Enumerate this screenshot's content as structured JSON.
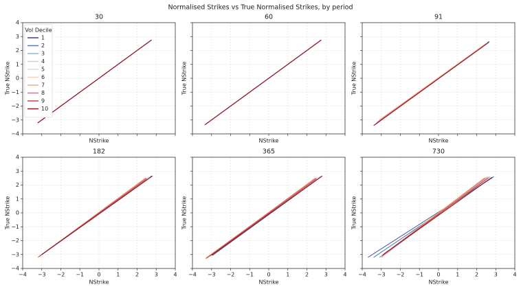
{
  "title": "Normalised Strikes vs True Normalised Strikes, by period",
  "chart_data": [
    {
      "type": "line",
      "title": "30",
      "xlabel": "NStrike",
      "ylabel": "True NStrike",
      "xlim": [
        -4,
        4
      ],
      "ylim": [
        -4,
        4
      ],
      "xticks": [
        {
          "value": -4,
          "label": "−4"
        },
        {
          "value": -3,
          "label": "−3"
        },
        {
          "value": -2,
          "label": "−2"
        },
        {
          "value": -1,
          "label": "−1"
        },
        0,
        1,
        2,
        3,
        4
      ],
      "yticks": [
        {
          "value": -4,
          "label": "−4"
        },
        {
          "value": -3,
          "label": "−3"
        },
        {
          "value": -2,
          "label": "−2"
        },
        {
          "value": -1,
          "label": "−1"
        },
        0,
        1,
        2,
        3,
        4
      ],
      "grid": true,
      "legend": "upper left",
      "legend_title": "Vol Decile",
      "series": [
        {
          "name": "1",
          "color": "#2b4a7a",
          "x": [
            -3.15,
            2.72
          ],
          "values": [
            -3.15,
            2.72
          ]
        },
        {
          "name": "2",
          "color": "#4d7fb3",
          "x": [
            -3.15,
            2.72
          ],
          "values": [
            -3.15,
            2.72
          ]
        },
        {
          "name": "3",
          "color": "#93b7d6",
          "x": [
            -3.17,
            2.73
          ],
          "values": [
            -3.17,
            2.73
          ]
        },
        {
          "name": "4",
          "color": "#c7d3e3",
          "x": [
            -3.18,
            2.73
          ],
          "values": [
            -3.18,
            2.73
          ]
        },
        {
          "name": "5",
          "color": "#dcdcdc",
          "x": [
            -3.18,
            2.74
          ],
          "values": [
            -3.18,
            2.74
          ]
        },
        {
          "name": "6",
          "color": "#f6cfc0",
          "x": [
            -3.2,
            2.74
          ],
          "values": [
            -3.2,
            2.74
          ]
        },
        {
          "name": "7",
          "color": "#f4a98c",
          "x": [
            -3.2,
            2.75
          ],
          "values": [
            -3.2,
            2.75
          ]
        },
        {
          "name": "8",
          "color": "#e47a62",
          "x": [
            -3.2,
            2.75
          ],
          "values": [
            -3.2,
            2.75
          ]
        },
        {
          "name": "9",
          "color": "#c84543",
          "x": [
            -3.22,
            2.76
          ],
          "values": [
            -3.22,
            2.76
          ]
        },
        {
          "name": "10",
          "color": "#8a1c2c",
          "x": [
            -3.2,
            2.76
          ],
          "values": [
            -3.2,
            2.76
          ]
        }
      ]
    },
    {
      "type": "line",
      "title": "60",
      "xlabel": "NStrike",
      "ylabel": "True NStrike",
      "xlim": [
        -4,
        4
      ],
      "ylim": [
        -4,
        4
      ],
      "xticks": [
        {
          "value": -4,
          "label": "−4"
        },
        {
          "value": -3,
          "label": "−3"
        },
        {
          "value": -2,
          "label": "−2"
        },
        {
          "value": -1,
          "label": "−1"
        },
        0,
        1,
        2,
        3,
        4
      ],
      "yticks": [
        {
          "value": -4,
          "label": "−4"
        },
        {
          "value": -3,
          "label": "−3"
        },
        {
          "value": -2,
          "label": "−2"
        },
        {
          "value": -1,
          "label": "−1"
        },
        0,
        1,
        2,
        3,
        4
      ],
      "grid": true,
      "series": [
        {
          "color": "#2b4a7a",
          "x": [
            -3.3,
            2.72
          ],
          "values": [
            -3.3,
            2.72
          ]
        },
        {
          "color": "#4d7fb3",
          "x": [
            -3.3,
            2.72
          ],
          "values": [
            -3.3,
            2.72
          ]
        },
        {
          "color": "#93b7d6",
          "x": [
            -3.32,
            2.73
          ],
          "values": [
            -3.32,
            2.73
          ]
        },
        {
          "color": "#c7d3e3",
          "x": [
            -3.32,
            2.73
          ],
          "values": [
            -3.32,
            2.73
          ]
        },
        {
          "color": "#dcdcdc",
          "x": [
            -3.33,
            2.74
          ],
          "values": [
            -3.33,
            2.74
          ]
        },
        {
          "color": "#f6cfc0",
          "x": [
            -3.33,
            2.74
          ],
          "values": [
            -3.33,
            2.74
          ]
        },
        {
          "color": "#f4a98c",
          "x": [
            -3.35,
            2.75
          ],
          "values": [
            -3.35,
            2.75
          ]
        },
        {
          "color": "#e47a62",
          "x": [
            -3.3,
            2.75
          ],
          "values": [
            -3.3,
            2.75
          ]
        },
        {
          "color": "#c84543",
          "x": [
            -3.35,
            2.76
          ],
          "values": [
            -3.35,
            2.76
          ]
        },
        {
          "color": "#8a1c2c",
          "x": [
            -3.35,
            2.75
          ],
          "values": [
            -3.35,
            2.75
          ]
        }
      ]
    },
    {
      "type": "line",
      "title": "91",
      "xlabel": "NStrike",
      "ylabel": "True NStrike",
      "xlim": [
        -4,
        4
      ],
      "ylim": [
        -4,
        4
      ],
      "xticks": [
        {
          "value": -4,
          "label": "−4"
        },
        {
          "value": -3,
          "label": "−3"
        },
        {
          "value": -2,
          "label": "−2"
        },
        {
          "value": -1,
          "label": "−1"
        },
        0,
        1,
        2,
        3,
        4
      ],
      "yticks": [
        {
          "value": -4,
          "label": "−4"
        },
        {
          "value": -3,
          "label": "−3"
        },
        {
          "value": -2,
          "label": "−2"
        },
        {
          "value": -1,
          "label": "−1"
        },
        0,
        1,
        2,
        3,
        4
      ],
      "grid": true,
      "series": [
        {
          "color": "#2b4a7a",
          "x": [
            -3.35,
            2.65
          ],
          "values": [
            -3.35,
            2.65
          ]
        },
        {
          "color": "#4d7fb3",
          "x": [
            -3.3,
            2.62
          ],
          "values": [
            -3.3,
            2.62
          ]
        },
        {
          "color": "#93b7d6",
          "x": [
            -3.25,
            2.6
          ],
          "values": [
            -3.2,
            2.6
          ]
        },
        {
          "color": "#c7d3e3",
          "x": [
            -3.2,
            2.55
          ],
          "values": [
            -3.15,
            2.55
          ]
        },
        {
          "color": "#dcdcdc",
          "x": [
            -3.15,
            2.55
          ],
          "values": [
            -3.1,
            2.55
          ]
        },
        {
          "color": "#f6cfc0",
          "x": [
            -3.1,
            2.5
          ],
          "values": [
            -3.05,
            2.5
          ]
        },
        {
          "color": "#f4a98c",
          "x": [
            -3.1,
            2.5
          ],
          "values": [
            -3.0,
            2.5
          ]
        },
        {
          "color": "#e47a62",
          "x": [
            -3.2,
            2.55
          ],
          "values": [
            -3.15,
            2.5
          ]
        },
        {
          "color": "#c84543",
          "x": [
            -3.3,
            2.6
          ],
          "values": [
            -3.3,
            2.55
          ]
        },
        {
          "color": "#8a1c2c",
          "x": [
            -3.4,
            2.65
          ],
          "values": [
            -3.4,
            2.6
          ]
        }
      ]
    },
    {
      "type": "line",
      "title": "182",
      "xlabel": "NStrike",
      "ylabel": "True NStrike",
      "xlim": [
        -4,
        4
      ],
      "ylim": [
        -4,
        4
      ],
      "xticks": [
        {
          "value": -4,
          "label": "−4"
        },
        {
          "value": -3,
          "label": "−3"
        },
        {
          "value": -2,
          "label": "−2"
        },
        {
          "value": -1,
          "label": "−1"
        },
        0,
        1,
        2,
        3,
        4
      ],
      "yticks": [
        {
          "value": -4,
          "label": "−4"
        },
        {
          "value": -3,
          "label": "−3"
        },
        {
          "value": -2,
          "label": "−2"
        },
        {
          "value": -1,
          "label": "−1"
        },
        0,
        1,
        2,
        3,
        4
      ],
      "grid": true,
      "series": [
        {
          "color": "#2b4a7a",
          "x": [
            -3.0,
            2.8
          ],
          "values": [
            -3.0,
            2.65
          ]
        },
        {
          "color": "#4d7fb3",
          "x": [
            -3.0,
            2.75
          ],
          "values": [
            -3.0,
            2.65
          ]
        },
        {
          "color": "#93b7d6",
          "x": [
            -3.05,
            2.7
          ],
          "values": [
            -3.05,
            2.6
          ]
        },
        {
          "color": "#c7d3e3",
          "x": [
            -3.1,
            2.65
          ],
          "values": [
            -3.1,
            2.6
          ]
        },
        {
          "color": "#dcdcdc",
          "x": [
            -3.1,
            2.6
          ],
          "values": [
            -3.1,
            2.55
          ]
        },
        {
          "color": "#f6cfc0",
          "x": [
            -3.15,
            2.55
          ],
          "values": [
            -3.15,
            2.55
          ]
        },
        {
          "color": "#f4a98c",
          "x": [
            -3.2,
            2.5
          ],
          "values": [
            -3.2,
            2.5
          ]
        },
        {
          "color": "#e47a62",
          "x": [
            -3.2,
            2.45
          ],
          "values": [
            -3.2,
            2.5
          ]
        },
        {
          "color": "#c84543",
          "x": [
            -3.15,
            2.5
          ],
          "values": [
            -3.15,
            2.45
          ]
        },
        {
          "color": "#8a1c2c",
          "x": [
            -3.0,
            2.8
          ],
          "values": [
            -3.0,
            2.65
          ]
        }
      ]
    },
    {
      "type": "line",
      "title": "365",
      "xlabel": "NStrike",
      "ylabel": "True NStrike",
      "xlim": [
        -4,
        4
      ],
      "ylim": [
        -4,
        4
      ],
      "xticks": [
        {
          "value": -4,
          "label": "−4"
        },
        {
          "value": -3,
          "label": "−3"
        },
        {
          "value": -2,
          "label": "−2"
        },
        {
          "value": -1,
          "label": "−1"
        },
        0,
        1,
        2,
        3,
        4
      ],
      "yticks": [
        {
          "value": -4,
          "label": "−4"
        },
        {
          "value": -3,
          "label": "−3"
        },
        {
          "value": -2,
          "label": "−2"
        },
        {
          "value": -1,
          "label": "−1"
        },
        0,
        1,
        2,
        3,
        4
      ],
      "grid": true,
      "series": [
        {
          "color": "#2b4a7a",
          "x": [
            -2.95,
            2.8
          ],
          "values": [
            -3.05,
            2.65
          ]
        },
        {
          "color": "#4d7fb3",
          "x": [
            -3.0,
            2.75
          ],
          "values": [
            -3.05,
            2.6
          ]
        },
        {
          "color": "#93b7d6",
          "x": [
            -3.05,
            2.7
          ],
          "values": [
            -3.1,
            2.6
          ]
        },
        {
          "color": "#c7d3e3",
          "x": [
            -3.1,
            2.65
          ],
          "values": [
            -3.15,
            2.55
          ]
        },
        {
          "color": "#dcdcdc",
          "x": [
            -3.15,
            2.6
          ],
          "values": [
            -3.15,
            2.55
          ]
        },
        {
          "color": "#f6cfc0",
          "x": [
            -3.2,
            2.55
          ],
          "values": [
            -3.2,
            2.55
          ]
        },
        {
          "color": "#f4a98c",
          "x": [
            -3.3,
            2.5
          ],
          "values": [
            -3.25,
            2.5
          ]
        },
        {
          "color": "#e47a62",
          "x": [
            -3.3,
            2.45
          ],
          "values": [
            -3.3,
            2.5
          ]
        },
        {
          "color": "#c84543",
          "x": [
            -3.25,
            2.5
          ],
          "values": [
            -3.25,
            2.45
          ]
        },
        {
          "color": "#8a1c2c",
          "x": [
            -3.0,
            2.8
          ],
          "values": [
            -3.05,
            2.65
          ]
        }
      ]
    },
    {
      "type": "line",
      "title": "730",
      "xlabel": "NStrike",
      "ylabel": "True NStrike",
      "xlim": [
        -4,
        4
      ],
      "ylim": [
        -4,
        4
      ],
      "xticks": [
        {
          "value": -4,
          "label": "−4"
        },
        {
          "value": -3,
          "label": "−3"
        },
        {
          "value": -2,
          "label": "−2"
        },
        {
          "value": -1,
          "label": "−1"
        },
        0,
        1,
        2,
        3,
        4
      ],
      "yticks": [
        {
          "value": -4,
          "label": "−4"
        },
        {
          "value": -3,
          "label": "−3"
        },
        {
          "value": -2,
          "label": "−2"
        },
        {
          "value": -1,
          "label": "−1"
        },
        0,
        1,
        2,
        3,
        4
      ],
      "grid": true,
      "series": [
        {
          "color": "#4b5fa0",
          "x": [
            -3.7,
            2.9
          ],
          "values": [
            -3.2,
            2.6
          ]
        },
        {
          "color": "#4d7fb3",
          "x": [
            -3.4,
            2.8
          ],
          "values": [
            -3.2,
            2.55
          ]
        },
        {
          "color": "#9a8fc0",
          "x": [
            -3.1,
            2.7
          ],
          "values": [
            -3.2,
            2.6
          ]
        },
        {
          "color": "#c7a3c8",
          "x": [
            -3.0,
            2.6
          ],
          "values": [
            -3.2,
            2.6
          ]
        },
        {
          "color": "#dcb8d0",
          "x": [
            -3.0,
            2.5
          ],
          "values": [
            -3.15,
            2.55
          ]
        },
        {
          "color": "#f6cfc0",
          "x": [
            -2.95,
            2.45
          ],
          "values": [
            -3.1,
            2.5
          ]
        },
        {
          "color": "#f4a98c",
          "x": [
            -3.0,
            2.4
          ],
          "values": [
            -3.1,
            2.5
          ]
        },
        {
          "color": "#e47a62",
          "x": [
            -3.0,
            2.45
          ],
          "values": [
            -3.15,
            2.5
          ]
        },
        {
          "color": "#c84543",
          "x": [
            -2.95,
            2.6
          ],
          "values": [
            -3.05,
            2.5
          ]
        },
        {
          "color": "#8a1c2c",
          "x": [
            -2.9,
            2.8
          ],
          "values": [
            -3.0,
            2.55
          ]
        }
      ]
    }
  ]
}
